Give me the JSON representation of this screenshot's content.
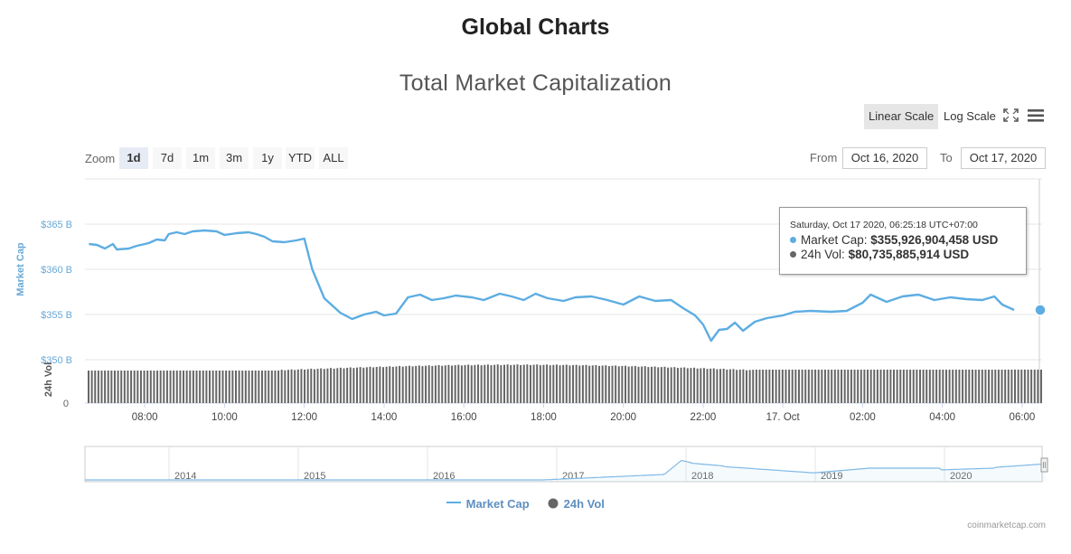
{
  "page": {
    "title": "Global Charts"
  },
  "chart_title": "Total Market Capitalization",
  "scale_buttons": {
    "linear": "Linear Scale",
    "log": "Log Scale"
  },
  "zoom": {
    "label": "Zoom",
    "buttons": [
      "1d",
      "7d",
      "1m",
      "3m",
      "1y",
      "YTD",
      "ALL"
    ],
    "active": "1d"
  },
  "range": {
    "from_label": "From",
    "from_value": "Oct 16, 2020",
    "to_label": "To",
    "to_value": "Oct 17, 2020"
  },
  "tooltip": {
    "date": "Saturday, Oct 17 2020, 06:25:18 UTC+07:00",
    "market_cap_label": "Market Cap:",
    "market_cap_value": "$355,926,904,458 USD",
    "vol_label": "24h Vol:",
    "vol_value": "$80,735,885,914 USD"
  },
  "legend": {
    "market_cap": "Market Cap",
    "vol": "24h Vol"
  },
  "credits": "coinmarketcap.com",
  "colors": {
    "market_cap": "#5dade2",
    "vol": "#666666",
    "axis_blue": "#67a8d6",
    "navigator_line": "#7fb9e6"
  },
  "chart_data": {
    "type": "line",
    "title": "Total Market Capitalization",
    "y_axis": {
      "label": "Market Cap",
      "ticks": [
        "$350 B",
        "$355 B",
        "$360 B",
        "$365 B"
      ],
      "range_billions": [
        350,
        370
      ]
    },
    "y2_axis": {
      "label": "24h Vol",
      "ticks": [
        "0"
      ]
    },
    "x_ticks": [
      "08:00",
      "10:00",
      "12:00",
      "14:00",
      "16:00",
      "18:00",
      "20:00",
      "22:00",
      "17. Oct",
      "02:00",
      "04:00",
      "06:00"
    ],
    "x_range_hours": [
      6.5,
      30.5
    ],
    "series": [
      {
        "name": "Market Cap",
        "unit": "billion USD",
        "points": [
          [
            6.6,
            362.8
          ],
          [
            6.8,
            362.7
          ],
          [
            7.0,
            362.3
          ],
          [
            7.2,
            362.8
          ],
          [
            7.3,
            362.2
          ],
          [
            7.6,
            362.3
          ],
          [
            7.8,
            362.6
          ],
          [
            8.1,
            362.9
          ],
          [
            8.3,
            363.3
          ],
          [
            8.5,
            363.2
          ],
          [
            8.6,
            363.9
          ],
          [
            8.8,
            364.1
          ],
          [
            9.0,
            363.9
          ],
          [
            9.2,
            364.2
          ],
          [
            9.5,
            364.3
          ],
          [
            9.8,
            364.2
          ],
          [
            10.0,
            363.8
          ],
          [
            10.3,
            364.0
          ],
          [
            10.6,
            364.1
          ],
          [
            10.8,
            363.9
          ],
          [
            11.0,
            363.6
          ],
          [
            11.2,
            363.1
          ],
          [
            11.5,
            363.0
          ],
          [
            11.8,
            363.2
          ],
          [
            12.0,
            363.4
          ],
          [
            12.2,
            360.0
          ],
          [
            12.5,
            356.8
          ],
          [
            12.9,
            355.2
          ],
          [
            13.2,
            354.5
          ],
          [
            13.5,
            355.0
          ],
          [
            13.8,
            355.3
          ],
          [
            14.0,
            354.9
          ],
          [
            14.3,
            355.1
          ],
          [
            14.6,
            356.9
          ],
          [
            14.9,
            357.2
          ],
          [
            15.2,
            356.6
          ],
          [
            15.5,
            356.8
          ],
          [
            15.8,
            357.1
          ],
          [
            16.2,
            356.9
          ],
          [
            16.5,
            356.6
          ],
          [
            16.9,
            357.3
          ],
          [
            17.2,
            357.0
          ],
          [
            17.5,
            356.6
          ],
          [
            17.8,
            357.3
          ],
          [
            18.1,
            356.8
          ],
          [
            18.5,
            356.5
          ],
          [
            18.8,
            356.9
          ],
          [
            19.2,
            357.0
          ],
          [
            19.6,
            356.6
          ],
          [
            20.0,
            356.1
          ],
          [
            20.4,
            357.0
          ],
          [
            20.8,
            356.5
          ],
          [
            21.2,
            356.6
          ],
          [
            21.5,
            355.7
          ],
          [
            21.8,
            354.9
          ],
          [
            22.0,
            353.9
          ],
          [
            22.2,
            352.1
          ],
          [
            22.4,
            353.3
          ],
          [
            22.6,
            353.4
          ],
          [
            22.8,
            354.1
          ],
          [
            23.0,
            353.2
          ],
          [
            23.3,
            354.2
          ],
          [
            23.6,
            354.6
          ],
          [
            24.0,
            354.9
          ],
          [
            24.3,
            355.3
          ],
          [
            24.7,
            355.4
          ],
          [
            25.2,
            355.3
          ],
          [
            25.6,
            355.4
          ],
          [
            26.0,
            356.3
          ],
          [
            26.2,
            357.2
          ],
          [
            26.6,
            356.4
          ],
          [
            27.0,
            357.0
          ],
          [
            27.4,
            357.2
          ],
          [
            27.8,
            356.6
          ],
          [
            28.2,
            356.9
          ],
          [
            28.6,
            356.7
          ],
          [
            29.0,
            356.6
          ],
          [
            29.3,
            357.0
          ],
          [
            29.5,
            356.1
          ],
          [
            29.8,
            355.5
          ]
        ]
      },
      {
        "name": "24h Vol",
        "unit": "billion USD",
        "values_note": ""
      }
    ],
    "navigator": {
      "ticks": [
        "2014",
        "2015",
        "2016",
        "2017",
        "2018",
        "2019",
        "2020"
      ]
    }
  }
}
